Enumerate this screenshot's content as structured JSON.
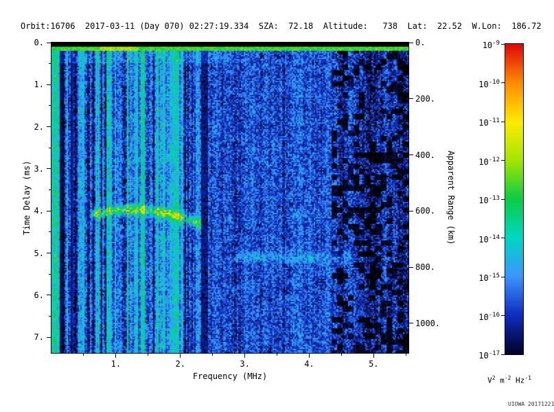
{
  "header": {
    "orbit": "16706",
    "date": "2017-03-11",
    "day_of_year": "070",
    "time": "02:27:19.334",
    "sza": "72.18",
    "altitude": "738",
    "lat": "22.52",
    "w_lon": "186.72",
    "line": "Orbit:16706  2017-03-11 (Day 070) 02:27:19.334  SZA:  72.18  Altitude:   738  Lat:  22.52  W.Lon:  186.72"
  },
  "watermark": "UIOWA 20171221",
  "chart_data": {
    "type": "heatmap",
    "title": "",
    "xlabel": "Frequency (MHz)",
    "ylabel_left": "Time Delay (ms)",
    "ylabel_right": "Apparent Range (km)",
    "xlim_mhz": [
      0.0,
      5.54
    ],
    "x_ticks_mhz": [
      1,
      2,
      3,
      4,
      5
    ],
    "ylim_ms": [
      0.0,
      7.37
    ],
    "y_ticks_ms": [
      0,
      1,
      2,
      3,
      4,
      5,
      6,
      7
    ],
    "right_ticks_km": [
      0,
      200,
      400,
      600,
      800,
      1000
    ],
    "km_per_ms": 150,
    "grid": false,
    "legend": "colorbar-right",
    "noise_seed": 20171221,
    "colormap_stops": [
      [
        0.0,
        2,
        2,
        40
      ],
      [
        0.125,
        15,
        45,
        190
      ],
      [
        0.25,
        60,
        150,
        255
      ],
      [
        0.375,
        0,
        215,
        195
      ],
      [
        0.5,
        10,
        205,
        70
      ],
      [
        0.625,
        165,
        230,
        0
      ],
      [
        0.75,
        255,
        235,
        0
      ],
      [
        0.875,
        255,
        140,
        0
      ],
      [
        1.0,
        220,
        10,
        10
      ]
    ],
    "colorbar": {
      "scale": "log10",
      "exponent_ticks": [
        -9,
        -10,
        -11,
        -12,
        -13,
        -14,
        -15,
        -16,
        -17
      ],
      "units_parts": [
        [
          "V",
          "2"
        ],
        [
          "m",
          "-2"
        ],
        [
          "Hz",
          "-1"
        ]
      ]
    },
    "features": [
      {
        "name": "top-blanking-band",
        "delay_range_ms": [
          0,
          0.09
        ]
      },
      {
        "name": "surface-return-line",
        "delay_range_ms": [
          0.09,
          0.2
        ],
        "level": 0.54,
        "bright_blob_mhz": 1.05,
        "bright_blob_half_width_mhz": 0.3
      },
      {
        "name": "ionospheric-echo-trace",
        "freq_range_mhz": [
          0.62,
          2.38
        ],
        "vertex_mhz": 1.25,
        "vertex_delay_ms": 3.97,
        "curvature_ms": 0.33,
        "freq_scale_mhz": 1.05,
        "half_width_ms": 0.11,
        "amplitude": 0.34
      },
      {
        "name": "interference-null-band",
        "freq_mhz": 2.37,
        "half_width_mhz": 0.055
      },
      {
        "name": "dark-columns",
        "freqs_mhz": [
          0.16,
          0.31
        ],
        "half_width_mhz": 0.022
      },
      {
        "name": "faint-echo-band",
        "freq_range_mhz": [
          2.85,
          4.65
        ],
        "delay_ms": 5.1,
        "sigma_ms": 0.14,
        "amplitude": 0.1
      },
      {
        "name": "noise-floor",
        "base_low_freq": 0.2,
        "base_mid_freq": 0.165,
        "base_high_freq": 0.12,
        "boundary1_mhz": 2.32,
        "boundary2_mhz": 4.35,
        "speckle": 0.1
      }
    ]
  }
}
